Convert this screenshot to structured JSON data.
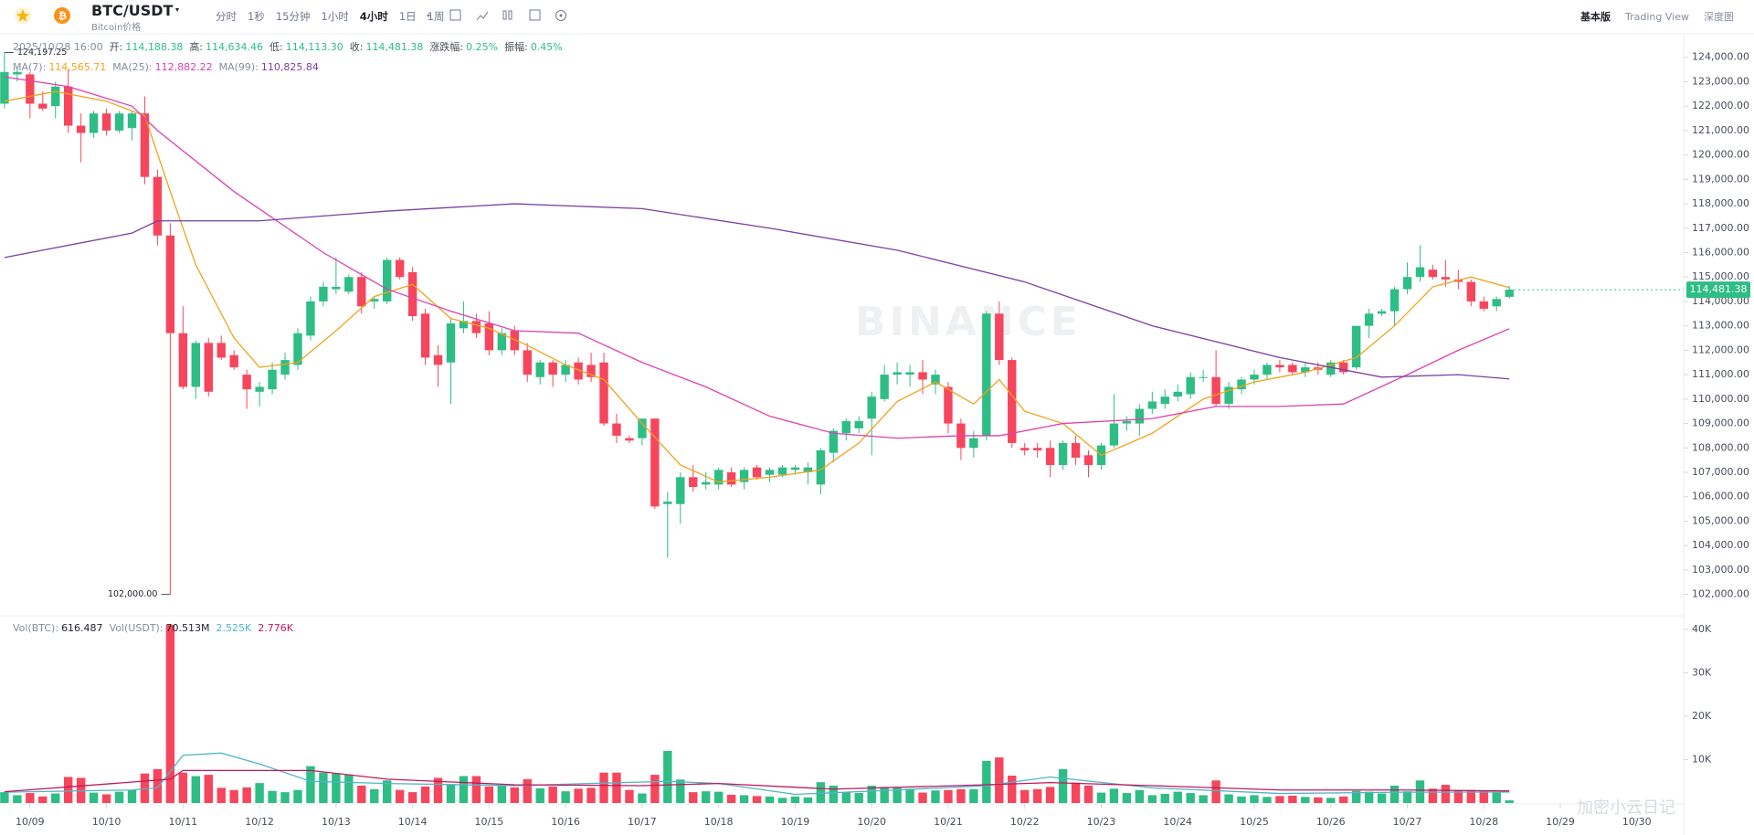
{
  "header": {
    "symbol": "BTC/USDT",
    "subtitle": "Bitcoin价格",
    "intervals": [
      "分时",
      "1秒",
      "15分钟",
      "1小时",
      "4小时",
      "1日",
      "1周"
    ],
    "active_interval": 4,
    "views": [
      "基本版",
      "Trading View",
      "深度图"
    ]
  },
  "info": {
    "time": "2025/10/28 16:00",
    "items": [
      {
        "label": "开:",
        "value": "114,188.38"
      },
      {
        "label": "高:",
        "value": "114,634.46"
      },
      {
        "label": "低:",
        "value": "114,113.30"
      },
      {
        "label": "收:",
        "value": "114,481.38"
      },
      {
        "label": "涨跌幅:",
        "value": "0.25%"
      },
      {
        "label": "振幅:",
        "value": "0.45%"
      }
    ]
  },
  "ma_legend": [
    {
      "label": "MA(7):",
      "value": "114,565.71"
    },
    {
      "label": "MA(25):",
      "value": "112,882.22"
    },
    {
      "label": "MA(99):",
      "value": "110,825.84"
    }
  ],
  "vol_legend": [
    {
      "label": "Vol(BTC):",
      "value": "616.487"
    },
    {
      "label": "Vol(USDT):",
      "value": "70.513M"
    },
    {
      "value": "2.525K"
    },
    {
      "value": "2.776K"
    }
  ],
  "watermark": "BINANCE",
  "corner_watermark": "加密小云日记",
  "chart_data": {
    "type": "candlestick",
    "up_color": "#2ebd85",
    "down_color": "#f6465d",
    "ylim": [
      101200,
      125000
    ],
    "yticks": [
      {
        "value": 102000,
        "label": "102,000.00"
      },
      {
        "value": 103000,
        "label": "103,000.00"
      },
      {
        "value": 104000,
        "label": "104,000.00"
      },
      {
        "value": 105000,
        "label": "105,000.00"
      },
      {
        "value": 106000,
        "label": "106,000.00"
      },
      {
        "value": 107000,
        "label": "107,000.00"
      },
      {
        "value": 108000,
        "label": "108,000.00"
      },
      {
        "value": 109000,
        "label": "109,000.00"
      },
      {
        "value": 110000,
        "label": "110,000.00"
      },
      {
        "value": 111000,
        "label": "111,000.00"
      },
      {
        "value": 112000,
        "label": "112,000.00"
      },
      {
        "value": 113000,
        "label": "113,000.00"
      },
      {
        "value": 114000,
        "label": "114,000.00"
      },
      {
        "value": 115000,
        "label": "115,000.00"
      },
      {
        "value": 116000,
        "label": "116,000.00"
      },
      {
        "value": 117000,
        "label": "117,000.00"
      },
      {
        "value": 118000,
        "label": "118,000.00"
      },
      {
        "value": 119000,
        "label": "119,000.00"
      },
      {
        "value": 120000,
        "label": "120,000.00"
      },
      {
        "value": 121000,
        "label": "121,000.00"
      },
      {
        "value": 122000,
        "label": "122,000.00"
      },
      {
        "value": 123000,
        "label": "123,000.00"
      },
      {
        "value": 124000,
        "label": "124,000.00"
      }
    ],
    "vol_ylim": [
      0,
      42700
    ],
    "vol_yticks": [
      {
        "value": 10000,
        "label": "10K"
      },
      {
        "value": 20000,
        "label": "20K"
      },
      {
        "value": 30000,
        "label": "30K"
      },
      {
        "value": 40000,
        "label": "40K"
      }
    ],
    "xticks": [
      {
        "value": 2,
        "label": "10/09"
      },
      {
        "value": 8,
        "label": "10/10"
      },
      {
        "value": 14,
        "label": "10/11"
      },
      {
        "value": 20,
        "label": "10/12"
      },
      {
        "value": 26,
        "label": "10/13"
      },
      {
        "value": 32,
        "label": "10/14"
      },
      {
        "value": 38,
        "label": "10/15"
      },
      {
        "value": 44,
        "label": "10/16"
      },
      {
        "value": 50,
        "label": "10/17"
      },
      {
        "value": 56,
        "label": "10/18"
      },
      {
        "value": 62,
        "label": "10/19"
      },
      {
        "value": 68,
        "label": "10/20"
      },
      {
        "value": 74,
        "label": "10/21"
      },
      {
        "value": 80,
        "label": "10/22"
      },
      {
        "value": 86,
        "label": "10/23"
      },
      {
        "value": 92,
        "label": "10/24"
      },
      {
        "value": 98,
        "label": "10/25"
      },
      {
        "value": 104,
        "label": "10/26"
      },
      {
        "value": 110,
        "label": "10/27"
      },
      {
        "value": 116,
        "label": "10/28"
      },
      {
        "value": 122,
        "label": "10/29"
      },
      {
        "value": 128,
        "label": "10/30"
      }
    ],
    "high_label": "124,197.25",
    "low_label": "102,000.00",
    "last_price_label": "114,481.38",
    "candles": {
      "open": [
        122100,
        123300,
        123300,
        122100,
        122000,
        122800,
        121200,
        120900,
        121700,
        121000,
        121100,
        121700,
        119100,
        116700,
        112700,
        110500,
        112300,
        112300,
        111800,
        111000,
        110300,
        110400,
        111000,
        111400,
        112600,
        114000,
        114500,
        114400,
        115000,
        114000,
        114000,
        115700,
        115200,
        113500,
        111800,
        111500,
        112900,
        113200,
        113100,
        112000,
        112800,
        112000,
        110900,
        111500,
        111000,
        111500,
        111400,
        111500,
        109000,
        108400,
        108400,
        109200,
        105700,
        105700,
        106800,
        106500,
        106500,
        107000,
        106600,
        107200,
        106900,
        106900,
        107100,
        107000,
        106500,
        107800,
        108600,
        108800,
        109200,
        110000,
        111000,
        111000,
        111100,
        110600,
        110500,
        109000,
        108000,
        108500,
        113500,
        111600,
        108000,
        108000,
        108000,
        107300,
        108200,
        107700,
        107300,
        108100,
        109000,
        109000,
        109600,
        109800,
        110100,
        110200,
        110900,
        110900,
        109800,
        110400,
        110800,
        111000,
        111400,
        111400,
        111100,
        111300,
        111000,
        111500,
        111300,
        113000,
        113500,
        113600,
        114500,
        115000,
        115300,
        115000,
        114900,
        114800,
        114000,
        113800,
        114188.38
      ],
      "high": [
        124197.25,
        123600,
        123400,
        122600,
        123000,
        123500,
        121700,
        121800,
        121900,
        121800,
        121800,
        122400,
        119400,
        117200,
        113800,
        112400,
        112500,
        112600,
        112000,
        111200,
        110700,
        111500,
        111900,
        112900,
        114200,
        114800,
        115800,
        115100,
        115200,
        114200,
        115800,
        115800,
        115400,
        113700,
        112200,
        113300,
        114000,
        113500,
        113600,
        112900,
        113000,
        112300,
        111600,
        111600,
        111600,
        111700,
        111900,
        111900,
        109400,
        108500,
        109200,
        109200,
        106200,
        107000,
        107300,
        107000,
        107200,
        107200,
        107200,
        107300,
        107200,
        107300,
        107300,
        107400,
        108000,
        108800,
        109200,
        109300,
        110300,
        111400,
        111500,
        111400,
        111600,
        111200,
        110700,
        109200,
        108700,
        113600,
        114000,
        111700,
        108200,
        108200,
        108300,
        108300,
        108500,
        107900,
        108200,
        110200,
        109300,
        109800,
        110300,
        110400,
        110600,
        111100,
        111200,
        112000,
        110700,
        110900,
        111200,
        111500,
        111600,
        111500,
        111500,
        111500,
        111600,
        111600,
        113000,
        113700,
        113700,
        114600,
        115600,
        116300,
        115500,
        115700,
        115300,
        114900,
        114200,
        114200,
        114634.46
      ],
      "low": [
        121900,
        123000,
        121500,
        121800,
        121500,
        120900,
        119700,
        120700,
        120800,
        120900,
        120600,
        118800,
        116300,
        102000,
        110400,
        110000,
        110100,
        111600,
        111200,
        109600,
        109700,
        110200,
        110800,
        111200,
        112400,
        113800,
        114300,
        114300,
        113500,
        113700,
        113900,
        114900,
        113200,
        111400,
        110500,
        109800,
        112700,
        112500,
        111800,
        111800,
        111800,
        110700,
        110600,
        110500,
        110700,
        110600,
        110700,
        108900,
        108200,
        108200,
        108100,
        105500,
        103500,
        104900,
        106200,
        106300,
        106300,
        106400,
        106300,
        106700,
        106600,
        106800,
        106900,
        106500,
        106100,
        107400,
        108300,
        108600,
        107700,
        109900,
        110600,
        110500,
        110200,
        110200,
        108600,
        107500,
        107600,
        108300,
        111400,
        108000,
        107700,
        107600,
        106800,
        107100,
        107300,
        106800,
        107100,
        108000,
        108700,
        108500,
        109400,
        109600,
        109900,
        110000,
        110700,
        109700,
        109600,
        110200,
        110600,
        110800,
        111100,
        111000,
        110900,
        111000,
        110900,
        111000,
        111200,
        112500,
        113400,
        113000,
        114300,
        114800,
        114900,
        114600,
        114500,
        113800,
        113600,
        113600,
        114113.3
      ],
      "close": [
        123400,
        123400,
        122100,
        121900,
        122800,
        121200,
        120900,
        121700,
        121000,
        121700,
        121700,
        119100,
        116700,
        112700,
        110500,
        112300,
        110300,
        111700,
        111300,
        110400,
        110500,
        111200,
        111600,
        112700,
        114000,
        114600,
        114600,
        115000,
        113800,
        114100,
        115700,
        115000,
        113400,
        111700,
        111400,
        113100,
        113200,
        112700,
        112000,
        112700,
        112000,
        111000,
        111500,
        111000,
        111400,
        110800,
        110900,
        109000,
        108500,
        108300,
        109200,
        105600,
        105800,
        106800,
        106400,
        106600,
        107100,
        106500,
        107100,
        106800,
        107100,
        107200,
        107200,
        107200,
        107900,
        108700,
        109100,
        109100,
        110100,
        111000,
        111100,
        111100,
        110800,
        111000,
        109000,
        108000,
        108400,
        113500,
        111600,
        108200,
        107900,
        107900,
        107300,
        108200,
        107600,
        107300,
        108100,
        109000,
        109100,
        109600,
        109900,
        110100,
        110300,
        110900,
        110900,
        109800,
        110500,
        110800,
        111000,
        111400,
        111300,
        111100,
        111300,
        111200,
        111500,
        111100,
        113000,
        113500,
        113600,
        114500,
        115000,
        115400,
        115000,
        114900,
        114800,
        114000,
        113700,
        114100,
        114481.38
      ],
      "volume": [
        2500,
        1800,
        2300,
        1500,
        2200,
        6000,
        5800,
        2400,
        2000,
        2600,
        3000,
        6800,
        7800,
        41000,
        7000,
        6200,
        6500,
        3500,
        3000,
        3600,
        4600,
        2800,
        2500,
        3000,
        8500,
        7000,
        6800,
        6500,
        4000,
        3200,
        5200,
        3000,
        2500,
        3800,
        5800,
        4300,
        6200,
        6200,
        3800,
        4000,
        3600,
        5500,
        3400,
        3800,
        2700,
        3300,
        3500,
        7000,
        7000,
        3000,
        2200,
        6500,
        12000,
        5400,
        2500,
        2700,
        2600,
        1900,
        1800,
        1600,
        1500,
        1200,
        1500,
        1300,
        4800,
        4000,
        2500,
        2300,
        4000,
        3700,
        3500,
        3300,
        2400,
        2900,
        3000,
        3200,
        3200,
        9700,
        10500,
        6300,
        3000,
        3200,
        3700,
        7800,
        4700,
        4000,
        2400,
        3300,
        2300,
        3000,
        1800,
        2100,
        2600,
        2300,
        1800,
        5200,
        2000,
        1500,
        1800,
        1400,
        1600,
        1700,
        1400,
        1300,
        1200,
        1500,
        2800,
        2600,
        2200,
        4000,
        2700,
        5200,
        3300,
        4200,
        3000,
        3000,
        2900,
        2400,
        616.487
      ]
    },
    "ma_lines": [
      {
        "color": "#f0a31c",
        "x": [
          0,
          4,
          8,
          11,
          13,
          15,
          18,
          20,
          23,
          26,
          29,
          32,
          35,
          38,
          41,
          44,
          47,
          50,
          53,
          56,
          60,
          64,
          67,
          70,
          73,
          76,
          78,
          80,
          83,
          86,
          90,
          94,
          98,
          102,
          106,
          109,
          112,
          115,
          118
        ],
        "values": [
          122200,
          122600,
          122200,
          121600,
          118500,
          115500,
          112500,
          111300,
          111500,
          112800,
          114200,
          114700,
          113300,
          112900,
          112200,
          111400,
          110800,
          109000,
          107300,
          106600,
          106800,
          107100,
          108200,
          109900,
          110700,
          109800,
          110800,
          109500,
          109000,
          107700,
          108600,
          110000,
          110700,
          111100,
          111700,
          113000,
          114600,
          115000,
          114565.71
        ]
      },
      {
        "color": "#e040b0",
        "x": [
          0,
          5,
          10,
          12,
          18,
          25,
          30,
          35,
          40,
          45,
          50,
          55,
          60,
          65,
          70,
          75,
          78,
          83,
          90,
          95,
          100,
          105,
          110,
          114,
          118
        ],
        "values": [
          123200,
          122800,
          122000,
          121000,
          118500,
          116000,
          114500,
          113600,
          112800,
          112700,
          111500,
          110500,
          109300,
          108600,
          108400,
          108500,
          108500,
          109000,
          109200,
          109700,
          109700,
          109800,
          111000,
          112000,
          112882.22
        ]
      },
      {
        "color": "#7b3fa0",
        "x": [
          0,
          10,
          12,
          20,
          30,
          40,
          50,
          60,
          70,
          80,
          90,
          100,
          108,
          114,
          118
        ],
        "values": [
          115800,
          116800,
          117300,
          117300,
          117700,
          118000,
          117800,
          117000,
          116100,
          114800,
          113000,
          111700,
          110900,
          111000,
          110825.84
        ]
      }
    ],
    "vol_ma_lines": [
      {
        "color": "#4fb5c8",
        "x": [
          0,
          10,
          12,
          14,
          17,
          20,
          24,
          30,
          40,
          52,
          56,
          62,
          70,
          77,
          82,
          90,
          100,
          110,
          118
        ],
        "values": [
          2500,
          3000,
          3500,
          11000,
          11500,
          9000,
          5000,
          4500,
          4000,
          5000,
          4500,
          2000,
          3000,
          4000,
          6000,
          3500,
          2200,
          2500,
          2525
        ]
      },
      {
        "color": "#c2185b",
        "x": [
          0,
          13,
          14,
          24,
          30,
          40,
          50,
          56,
          65,
          77,
          82,
          90,
          100,
          110,
          118
        ],
        "values": [
          2600,
          5500,
          7500,
          7500,
          5500,
          4200,
          4000,
          4500,
          3200,
          4200,
          4700,
          4000,
          3000,
          3000,
          2776
        ]
      }
    ]
  }
}
